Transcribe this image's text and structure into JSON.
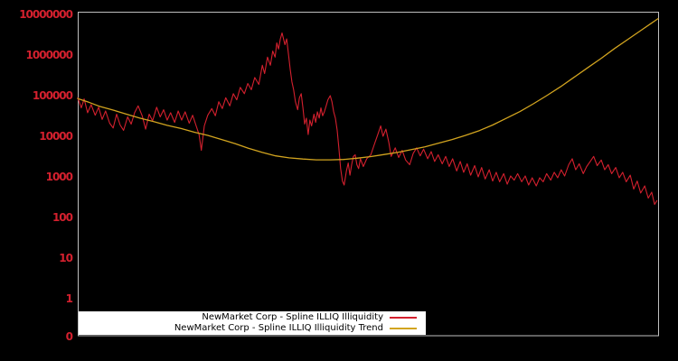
{
  "page": {
    "background_color": "#000000",
    "plot_border_color": "#bfbfbf"
  },
  "axes": {
    "y_tick_labels": [
      "10000000",
      "1000000",
      "100000",
      "10000",
      "1000",
      "100",
      "10",
      "1",
      "0"
    ],
    "tick_label_color": "#d4202e",
    "x_tick_labels": []
  },
  "legend": {
    "background_color": "#ffffff",
    "text_color": "#000000",
    "entries": [
      {
        "label": "NewMarket Corp - Spline ILLIQ Illiquidity",
        "color": "#d4202e"
      },
      {
        "label": "NewMarket Corp - Spline ILLIQ Illiquidity Trend",
        "color": "#d2a41f"
      }
    ]
  },
  "chart_data": {
    "type": "line",
    "title": "",
    "xlabel": "",
    "ylabel": "",
    "y_scale": "log",
    "y_ticks": [
      0,
      1,
      10,
      100,
      1000,
      10000,
      100000,
      1000000,
      10000000
    ],
    "ylim": [
      0,
      10000000
    ],
    "grid": false,
    "legend_position": "inside-bottom-left",
    "x_note": "x axis unlabeled; points given as fraction 0-1 of plot width",
    "series": [
      {
        "name": "NewMarket Corp - Spline ILLIQ Illiquidity",
        "color": "#d4202e",
        "points": [
          [
            0.0,
            89000
          ],
          [
            0.006,
            50000
          ],
          [
            0.011,
            83000
          ],
          [
            0.017,
            38000
          ],
          [
            0.023,
            60000
          ],
          [
            0.03,
            33000
          ],
          [
            0.036,
            52000
          ],
          [
            0.042,
            26000
          ],
          [
            0.048,
            42000
          ],
          [
            0.055,
            21000
          ],
          [
            0.061,
            16000
          ],
          [
            0.067,
            35000
          ],
          [
            0.073,
            19000
          ],
          [
            0.079,
            14000
          ],
          [
            0.086,
            30000
          ],
          [
            0.092,
            20000
          ],
          [
            0.098,
            38000
          ],
          [
            0.104,
            56000
          ],
          [
            0.111,
            32000
          ],
          [
            0.117,
            15000
          ],
          [
            0.123,
            35000
          ],
          [
            0.129,
            24000
          ],
          [
            0.136,
            52000
          ],
          [
            0.142,
            30000
          ],
          [
            0.148,
            45000
          ],
          [
            0.154,
            25000
          ],
          [
            0.16,
            38000
          ],
          [
            0.167,
            22000
          ],
          [
            0.173,
            42000
          ],
          [
            0.179,
            25000
          ],
          [
            0.185,
            40000
          ],
          [
            0.192,
            21000
          ],
          [
            0.198,
            33000
          ],
          [
            0.204,
            18000
          ],
          [
            0.209,
            11000
          ],
          [
            0.213,
            4500
          ],
          [
            0.218,
            18000
          ],
          [
            0.224,
            33000
          ],
          [
            0.231,
            48000
          ],
          [
            0.237,
            32000
          ],
          [
            0.243,
            71000
          ],
          [
            0.249,
            48000
          ],
          [
            0.255,
            89000
          ],
          [
            0.262,
            56000
          ],
          [
            0.268,
            112000
          ],
          [
            0.274,
            79000
          ],
          [
            0.28,
            160000
          ],
          [
            0.287,
            112000
          ],
          [
            0.293,
            200000
          ],
          [
            0.299,
            140000
          ],
          [
            0.305,
            280000
          ],
          [
            0.312,
            190000
          ],
          [
            0.318,
            560000
          ],
          [
            0.322,
            350000
          ],
          [
            0.327,
            890000
          ],
          [
            0.332,
            560000
          ],
          [
            0.336,
            1250000
          ],
          [
            0.34,
            890000
          ],
          [
            0.343,
            2000000
          ],
          [
            0.346,
            1400000
          ],
          [
            0.349,
            2500000
          ],
          [
            0.352,
            3500000
          ],
          [
            0.357,
            1800000
          ],
          [
            0.36,
            2500000
          ],
          [
            0.363,
            1100000
          ],
          [
            0.366,
            450000
          ],
          [
            0.369,
            220000
          ],
          [
            0.372,
            140000
          ],
          [
            0.375,
            71000
          ],
          [
            0.379,
            45000
          ],
          [
            0.382,
            89000
          ],
          [
            0.385,
            112000
          ],
          [
            0.388,
            50000
          ],
          [
            0.391,
            20000
          ],
          [
            0.394,
            28000
          ],
          [
            0.397,
            11000
          ],
          [
            0.4,
            25000
          ],
          [
            0.403,
            18000
          ],
          [
            0.407,
            35000
          ],
          [
            0.41,
            22000
          ],
          [
            0.413,
            40000
          ],
          [
            0.416,
            28000
          ],
          [
            0.419,
            50000
          ],
          [
            0.422,
            32000
          ],
          [
            0.425,
            40000
          ],
          [
            0.428,
            56000
          ],
          [
            0.431,
            79000
          ],
          [
            0.435,
            100000
          ],
          [
            0.438,
            71000
          ],
          [
            0.441,
            40000
          ],
          [
            0.444,
            28000
          ],
          [
            0.447,
            14000
          ],
          [
            0.45,
            5000
          ],
          [
            0.453,
            1600
          ],
          [
            0.456,
            790
          ],
          [
            0.459,
            630
          ],
          [
            0.463,
            1400
          ],
          [
            0.466,
            2200
          ],
          [
            0.469,
            1100
          ],
          [
            0.472,
            2000
          ],
          [
            0.475,
            3200
          ],
          [
            0.478,
            3500
          ],
          [
            0.481,
            2000
          ],
          [
            0.484,
            1600
          ],
          [
            0.487,
            2800
          ],
          [
            0.492,
            1800
          ],
          [
            0.498,
            2800
          ],
          [
            0.505,
            3500
          ],
          [
            0.511,
            6300
          ],
          [
            0.517,
            11000
          ],
          [
            0.522,
            18000
          ],
          [
            0.526,
            10000
          ],
          [
            0.531,
            15000
          ],
          [
            0.536,
            7100
          ],
          [
            0.54,
            3200
          ],
          [
            0.547,
            5200
          ],
          [
            0.553,
            3000
          ],
          [
            0.559,
            4500
          ],
          [
            0.565,
            2600
          ],
          [
            0.572,
            2000
          ],
          [
            0.578,
            3800
          ],
          [
            0.584,
            5200
          ],
          [
            0.59,
            3300
          ],
          [
            0.596,
            4800
          ],
          [
            0.603,
            2800
          ],
          [
            0.609,
            4200
          ],
          [
            0.615,
            2400
          ],
          [
            0.621,
            3500
          ],
          [
            0.628,
            2100
          ],
          [
            0.634,
            3200
          ],
          [
            0.64,
            1800
          ],
          [
            0.646,
            2800
          ],
          [
            0.653,
            1400
          ],
          [
            0.659,
            2400
          ],
          [
            0.665,
            1300
          ],
          [
            0.671,
            2100
          ],
          [
            0.677,
            1100
          ],
          [
            0.684,
            1900
          ],
          [
            0.69,
            1000
          ],
          [
            0.696,
            1700
          ],
          [
            0.702,
            890
          ],
          [
            0.709,
            1500
          ],
          [
            0.715,
            790
          ],
          [
            0.721,
            1300
          ],
          [
            0.727,
            760
          ],
          [
            0.734,
            1200
          ],
          [
            0.74,
            660
          ],
          [
            0.746,
            1050
          ],
          [
            0.752,
            830
          ],
          [
            0.758,
            1200
          ],
          [
            0.765,
            760
          ],
          [
            0.771,
            1050
          ],
          [
            0.777,
            630
          ],
          [
            0.783,
            950
          ],
          [
            0.79,
            600
          ],
          [
            0.796,
            950
          ],
          [
            0.802,
            760
          ],
          [
            0.808,
            1200
          ],
          [
            0.815,
            830
          ],
          [
            0.821,
            1300
          ],
          [
            0.827,
            950
          ],
          [
            0.833,
            1500
          ],
          [
            0.839,
            1050
          ],
          [
            0.846,
            2000
          ],
          [
            0.852,
            2800
          ],
          [
            0.858,
            1500
          ],
          [
            0.864,
            2100
          ],
          [
            0.871,
            1200
          ],
          [
            0.877,
            1800
          ],
          [
            0.883,
            2400
          ],
          [
            0.889,
            3200
          ],
          [
            0.895,
            1900
          ],
          [
            0.902,
            2600
          ],
          [
            0.908,
            1500
          ],
          [
            0.914,
            2000
          ],
          [
            0.92,
            1200
          ],
          [
            0.927,
            1700
          ],
          [
            0.933,
            950
          ],
          [
            0.939,
            1300
          ],
          [
            0.945,
            760
          ],
          [
            0.952,
            1100
          ],
          [
            0.958,
            500
          ],
          [
            0.964,
            790
          ],
          [
            0.97,
            400
          ],
          [
            0.977,
            600
          ],
          [
            0.983,
            300
          ],
          [
            0.989,
            420
          ],
          [
            0.994,
            210
          ],
          [
            0.998,
            260
          ]
        ]
      },
      {
        "name": "NewMarket Corp - Spline ILLIQ Illiquidity Trend",
        "color": "#d2a41f",
        "points": [
          [
            0.0,
            85000
          ],
          [
            0.019,
            69000
          ],
          [
            0.037,
            55000
          ],
          [
            0.061,
            44000
          ],
          [
            0.084,
            35000
          ],
          [
            0.107,
            28000
          ],
          [
            0.131,
            23000
          ],
          [
            0.154,
            18600
          ],
          [
            0.178,
            15500
          ],
          [
            0.201,
            12600
          ],
          [
            0.224,
            10500
          ],
          [
            0.248,
            8300
          ],
          [
            0.271,
            6600
          ],
          [
            0.294,
            5100
          ],
          [
            0.318,
            4000
          ],
          [
            0.341,
            3300
          ],
          [
            0.364,
            2950
          ],
          [
            0.388,
            2750
          ],
          [
            0.411,
            2630
          ],
          [
            0.435,
            2630
          ],
          [
            0.458,
            2690
          ],
          [
            0.481,
            2880
          ],
          [
            0.505,
            3160
          ],
          [
            0.528,
            3550
          ],
          [
            0.551,
            4000
          ],
          [
            0.575,
            4680
          ],
          [
            0.598,
            5500
          ],
          [
            0.621,
            6760
          ],
          [
            0.645,
            8320
          ],
          [
            0.668,
            10500
          ],
          [
            0.692,
            13800
          ],
          [
            0.715,
            19000
          ],
          [
            0.738,
            27500
          ],
          [
            0.762,
            40700
          ],
          [
            0.785,
            63000
          ],
          [
            0.808,
            100000
          ],
          [
            0.832,
            166000
          ],
          [
            0.855,
            282000
          ],
          [
            0.878,
            480000
          ],
          [
            0.902,
            830000
          ],
          [
            0.925,
            1450000
          ],
          [
            0.949,
            2500000
          ],
          [
            0.972,
            4200000
          ],
          [
            0.987,
            5900000
          ],
          [
            1.0,
            7900000
          ]
        ]
      }
    ]
  }
}
